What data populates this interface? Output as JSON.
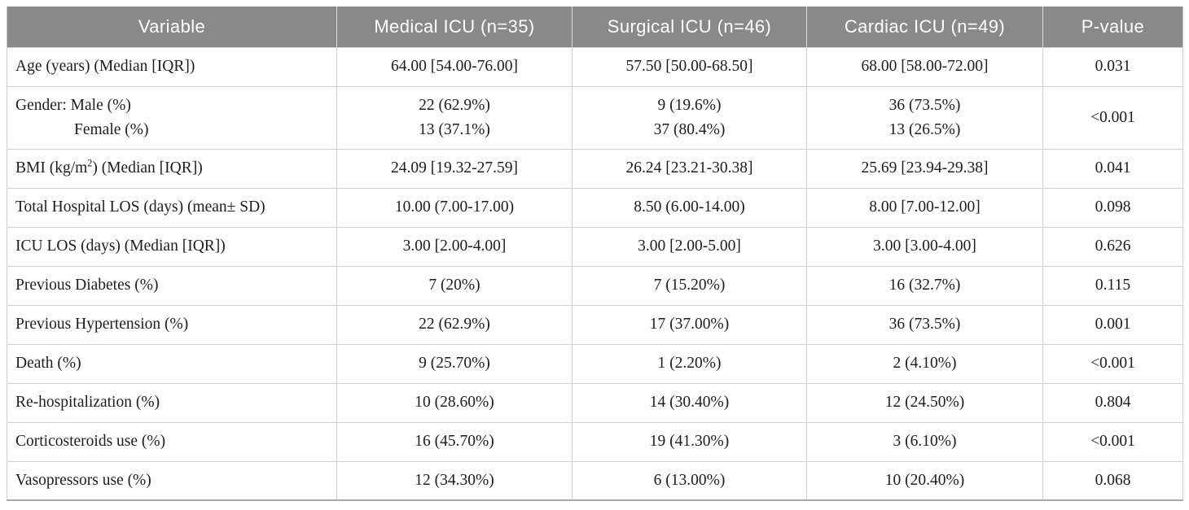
{
  "colors": {
    "header_background": "#898989",
    "header_text": "#ffffff",
    "body_text": "#1d1d1d",
    "grid_line": "#d2d2d2",
    "outer_border": "#c2c2c2"
  },
  "table": {
    "columns": [
      {
        "label": "Variable"
      },
      {
        "label": "Medical ICU (n=35)"
      },
      {
        "label": "Surgical ICU (n=46)"
      },
      {
        "label": "Cardiac ICU (n=49)"
      },
      {
        "label": "P-value"
      }
    ],
    "rows": [
      {
        "variable": "Age (years) (Median [IQR])",
        "medical": "64.00 [54.00-76.00]",
        "surgical": "57.50 [50.00-68.50]",
        "cardiac": "68.00 [58.00-72.00]",
        "p": "0.031"
      },
      {
        "variable": [
          "Gender: Male (%)",
          "Female (%)"
        ],
        "medical": [
          "22 (62.9%)",
          "13 (37.1%)"
        ],
        "surgical": [
          "9 (19.6%)",
          "37 (80.4%)"
        ],
        "cardiac": [
          "36 (73.5%)",
          "13 (26.5%)"
        ],
        "p": "<0.001"
      },
      {
        "variable": "BMI (kg/m^2) (Median [IQR])",
        "medical": "24.09 [19.32-27.59]",
        "surgical": "26.24 [23.21-30.38]",
        "cardiac": "25.69 [23.94-29.38]",
        "p": "0.041"
      },
      {
        "variable": "Total Hospital LOS (days) (mean± SD)",
        "medical": "10.00 (7.00-17.00)",
        "surgical": "8.50 (6.00-14.00)",
        "cardiac": "8.00 [7.00-12.00]",
        "p": "0.098"
      },
      {
        "variable": "ICU LOS (days) (Median [IQR])",
        "medical": "3.00 [2.00-4.00]",
        "surgical": "3.00 [2.00-5.00]",
        "cardiac": "3.00 [3.00-4.00]",
        "p": "0.626"
      },
      {
        "variable": "Previous Diabetes (%)",
        "medical": "7 (20%)",
        "surgical": "7 (15.20%)",
        "cardiac": "16 (32.7%)",
        "p": "0.115"
      },
      {
        "variable": "Previous Hypertension (%)",
        "medical": "22 (62.9%)",
        "surgical": "17 (37.00%)",
        "cardiac": "36 (73.5%)",
        "p": "0.001"
      },
      {
        "variable": "Death (%)",
        "medical": "9 (25.70%)",
        "surgical": "1 (2.20%)",
        "cardiac": "2 (4.10%)",
        "p": "<0.001"
      },
      {
        "variable": "Re-hospitalization (%)",
        "medical": "10 (28.60%)",
        "surgical": "14 (30.40%)",
        "cardiac": "12 (24.50%)",
        "p": "0.804"
      },
      {
        "variable": "Corticosteroids use (%)",
        "medical": "16 (45.70%)",
        "surgical": "19 (41.30%)",
        "cardiac": "3 (6.10%)",
        "p": "<0.001"
      },
      {
        "variable": "Vasopressors use (%)",
        "medical": "12 (34.30%)",
        "surgical": "6 (13.00%)",
        "cardiac": "10 (20.40%)",
        "p": "0.068"
      }
    ]
  }
}
